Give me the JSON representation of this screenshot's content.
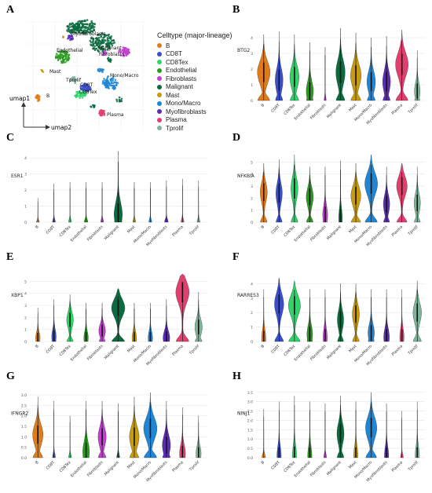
{
  "panels": {
    "A": "A",
    "B": "B",
    "C": "C",
    "D": "D",
    "E": "E",
    "F": "F",
    "G": "G",
    "H": "H"
  },
  "colors": {
    "B": "#e07b1a",
    "CD8T": "#3a4fc9",
    "CD8Tex": "#2fd36a",
    "Endothelial": "#2a9b1f",
    "Fibroblasts": "#c23fd0",
    "Malignant": "#0b6b3f",
    "Mast": "#c79a12",
    "Mono/Macro": "#1f86d6",
    "Myofibroblasts": "#5b2bb0",
    "Plasma": "#e0406e",
    "Tprolif": "#7fb39a"
  },
  "chart_data": [
    {
      "panel": "A",
      "type": "scatter",
      "title": "",
      "xlabel": "umap2",
      "ylabel": "umap1",
      "legend_title": "Celltype (major-lineage)",
      "legend_position": "right",
      "series": [
        {
          "name": "B",
          "label": "B"
        },
        {
          "name": "CD8T",
          "label": "CD8T"
        },
        {
          "name": "CD8Tex",
          "label": "CD8Tex"
        },
        {
          "name": "Endothelial",
          "label": "Endothelial"
        },
        {
          "name": "Fibroblasts",
          "label": "Fibroblasts"
        },
        {
          "name": "Malignant",
          "label": "Malignant"
        },
        {
          "name": "Mast",
          "label": "Mast"
        },
        {
          "name": "Mono/Macro",
          "label": "Mono/Macro"
        },
        {
          "name": "Myofibroblasts",
          "label": "Myofibroblasts"
        },
        {
          "name": "Plasma",
          "label": "Plasma"
        },
        {
          "name": "Tprolif",
          "label": "Tprolif"
        }
      ]
    },
    {
      "panel": "B",
      "type": "violin",
      "gene": "BTG2",
      "ylabel": "BTG2",
      "yticks": [
        "0",
        "1",
        "2",
        "3",
        "4"
      ],
      "ylim": [
        0,
        5
      ],
      "categories": [
        "B",
        "CD8T",
        "CD8Tex",
        "Endothelial",
        "Fibroblasts",
        "Malignant",
        "Mast",
        "Mono/Macro",
        "Myofibroblasts",
        "Plasma",
        "Tprolif"
      ],
      "max": [
        4.2,
        4.4,
        4.2,
        3.7,
        3.4,
        4.6,
        4.3,
        4.0,
        4.1,
        4.5,
        3.2
      ],
      "median": [
        1.8,
        1.3,
        1.5,
        0.6,
        0.0,
        1.8,
        1.6,
        1.2,
        1.2,
        2.3,
        0.6
      ],
      "width": [
        0.9,
        0.55,
        0.65,
        0.5,
        0.15,
        0.65,
        0.75,
        0.6,
        0.55,
        0.9,
        0.4
      ]
    },
    {
      "panel": "C",
      "type": "violin",
      "gene": "ESR1",
      "ylabel": "ESR1",
      "yticks": [
        "0",
        "1",
        "2",
        "3",
        "4"
      ],
      "ylim": [
        0,
        4.5
      ],
      "categories": [
        "B",
        "CD8T",
        "CD8Tex",
        "Endothelial",
        "Fibroblasts",
        "Malignant",
        "Mast",
        "Mono/Macro",
        "Myofibroblasts",
        "Plasma",
        "Tprolif"
      ],
      "max": [
        1.5,
        2.4,
        2.5,
        2.5,
        2.5,
        4.4,
        2.5,
        2.5,
        2.6,
        2.7,
        2.6
      ],
      "median": [
        0,
        0,
        0,
        0,
        0,
        0.5,
        0,
        0,
        0,
        0,
        0
      ],
      "width": [
        0.2,
        0.2,
        0.2,
        0.25,
        0.2,
        0.55,
        0.2,
        0.2,
        0.25,
        0.2,
        0.2
      ]
    },
    {
      "panel": "D",
      "type": "violin",
      "gene": "NFKBIA",
      "ylabel": "NFKBIA",
      "yticks": [
        "0",
        "1",
        "2",
        "3",
        "4",
        "5"
      ],
      "ylim": [
        0,
        6
      ],
      "categories": [
        "B",
        "CD8T",
        "CD8Tex",
        "Endothelial",
        "Fibroblasts",
        "Malignant",
        "Mast",
        "Mono/Macro",
        "Myofibroblasts",
        "Plasma",
        "Tprolif"
      ],
      "max": [
        4.9,
        5.2,
        5.6,
        4.6,
        4.6,
        5.1,
        4.9,
        5.6,
        4.6,
        4.9,
        4.6
      ],
      "median": [
        2.5,
        2.4,
        2.8,
        2.1,
        0.6,
        0.3,
        2.2,
        3.2,
        1.5,
        3.0,
        1.6
      ],
      "width": [
        0.5,
        0.45,
        0.5,
        0.5,
        0.35,
        0.25,
        0.7,
        0.9,
        0.45,
        0.75,
        0.45
      ]
    },
    {
      "panel": "E",
      "type": "violin",
      "gene": "XBP1",
      "ylabel": "XBP1",
      "yticks": [
        "0",
        "1",
        "2",
        "3",
        "4",
        "5"
      ],
      "ylim": [
        0,
        6
      ],
      "categories": [
        "B",
        "CD8T",
        "CD8Tex",
        "Endothelial",
        "Fibroblasts",
        "Malignant",
        "Mast",
        "Mono/Macro",
        "Myofibroblasts",
        "Plasma",
        "Tprolif"
      ],
      "max": [
        2.8,
        3.5,
        3.9,
        3.2,
        3.2,
        4.4,
        3.2,
        3.2,
        3.5,
        5.6,
        4.1
      ],
      "median": [
        0.3,
        0.4,
        1.8,
        0.3,
        0.9,
        2.8,
        0.3,
        0.3,
        0.3,
        4.1,
        1.2
      ],
      "width": [
        0.3,
        0.3,
        0.45,
        0.3,
        0.45,
        0.9,
        0.3,
        0.3,
        0.45,
        0.9,
        0.5
      ]
    },
    {
      "panel": "F",
      "type": "violin",
      "gene": "RARRES3",
      "ylabel": "RARRES3",
      "yticks": [
        "0",
        "1",
        "2",
        "3",
        "4"
      ],
      "ylim": [
        0,
        5
      ],
      "categories": [
        "B",
        "CD8T",
        "CD8Tex",
        "Endothelial",
        "Fibroblasts",
        "Malignant",
        "Mast",
        "Mono/Macro",
        "Myofibroblasts",
        "Plasma",
        "Tprolif"
      ],
      "max": [
        3.6,
        4.4,
        4.2,
        3.6,
        3.6,
        4.0,
        4.0,
        3.6,
        3.6,
        3.6,
        4.2
      ],
      "median": [
        0.2,
        2.6,
        2.5,
        0.5,
        0.3,
        1.5,
        1.9,
        0.6,
        0.3,
        0.3,
        2.0
      ],
      "width": [
        0.3,
        0.65,
        0.85,
        0.4,
        0.3,
        0.45,
        0.5,
        0.45,
        0.4,
        0.3,
        0.6
      ]
    },
    {
      "panel": "G",
      "type": "violin",
      "gene": "IFNGR2",
      "ylabel": "IFNGR2",
      "yticks": [
        "0.0",
        "0.5",
        "1.0",
        "1.5",
        "2.0",
        "2.5",
        "3.0"
      ],
      "ylim": [
        0,
        3.3
      ],
      "categories": [
        "B",
        "CD8T",
        "CD8Tex",
        "Endothelial",
        "Fibroblasts",
        "Malignant",
        "Mast",
        "Mono/Macro",
        "Myofibroblasts",
        "Plasma",
        "Tprolif"
      ],
      "max": [
        2.9,
        2.7,
        2.0,
        2.7,
        2.7,
        2.6,
        2.9,
        3.1,
        2.7,
        2.4,
        2.0
      ],
      "median": [
        1.1,
        0.0,
        0.0,
        0.3,
        1.0,
        0.0,
        1.0,
        1.4,
        0.6,
        0.2,
        0.2
      ],
      "width": [
        0.7,
        0.2,
        0.2,
        0.45,
        0.55,
        0.2,
        0.65,
        0.9,
        0.55,
        0.4,
        0.35
      ]
    },
    {
      "panel": "H",
      "type": "violin",
      "gene": "NINJ1",
      "ylabel": "NINJ1",
      "yticks": [
        "0.0",
        "0.5",
        "1.0",
        "1.5",
        "2.0",
        "2.5",
        "3.0",
        "3.5"
      ],
      "ylim": [
        0,
        3.7
      ],
      "categories": [
        "B",
        "CD8T",
        "CD8Tex",
        "Endothelial",
        "Fibroblasts",
        "Malignant",
        "Mast",
        "Mono/Macro",
        "Myofibroblasts",
        "Plasma",
        "Tprolif"
      ],
      "max": [
        2.6,
        3.0,
        3.3,
        3.0,
        2.9,
        3.3,
        3.0,
        3.5,
        2.9,
        2.5,
        3.0
      ],
      "median": [
        0.0,
        0.1,
        0.1,
        0.1,
        0.0,
        1.3,
        0.1,
        1.6,
        0.1,
        0.0,
        0.1
      ],
      "width": [
        0.25,
        0.3,
        0.3,
        0.3,
        0.2,
        0.5,
        0.3,
        0.8,
        0.3,
        0.2,
        0.3
      ]
    }
  ]
}
